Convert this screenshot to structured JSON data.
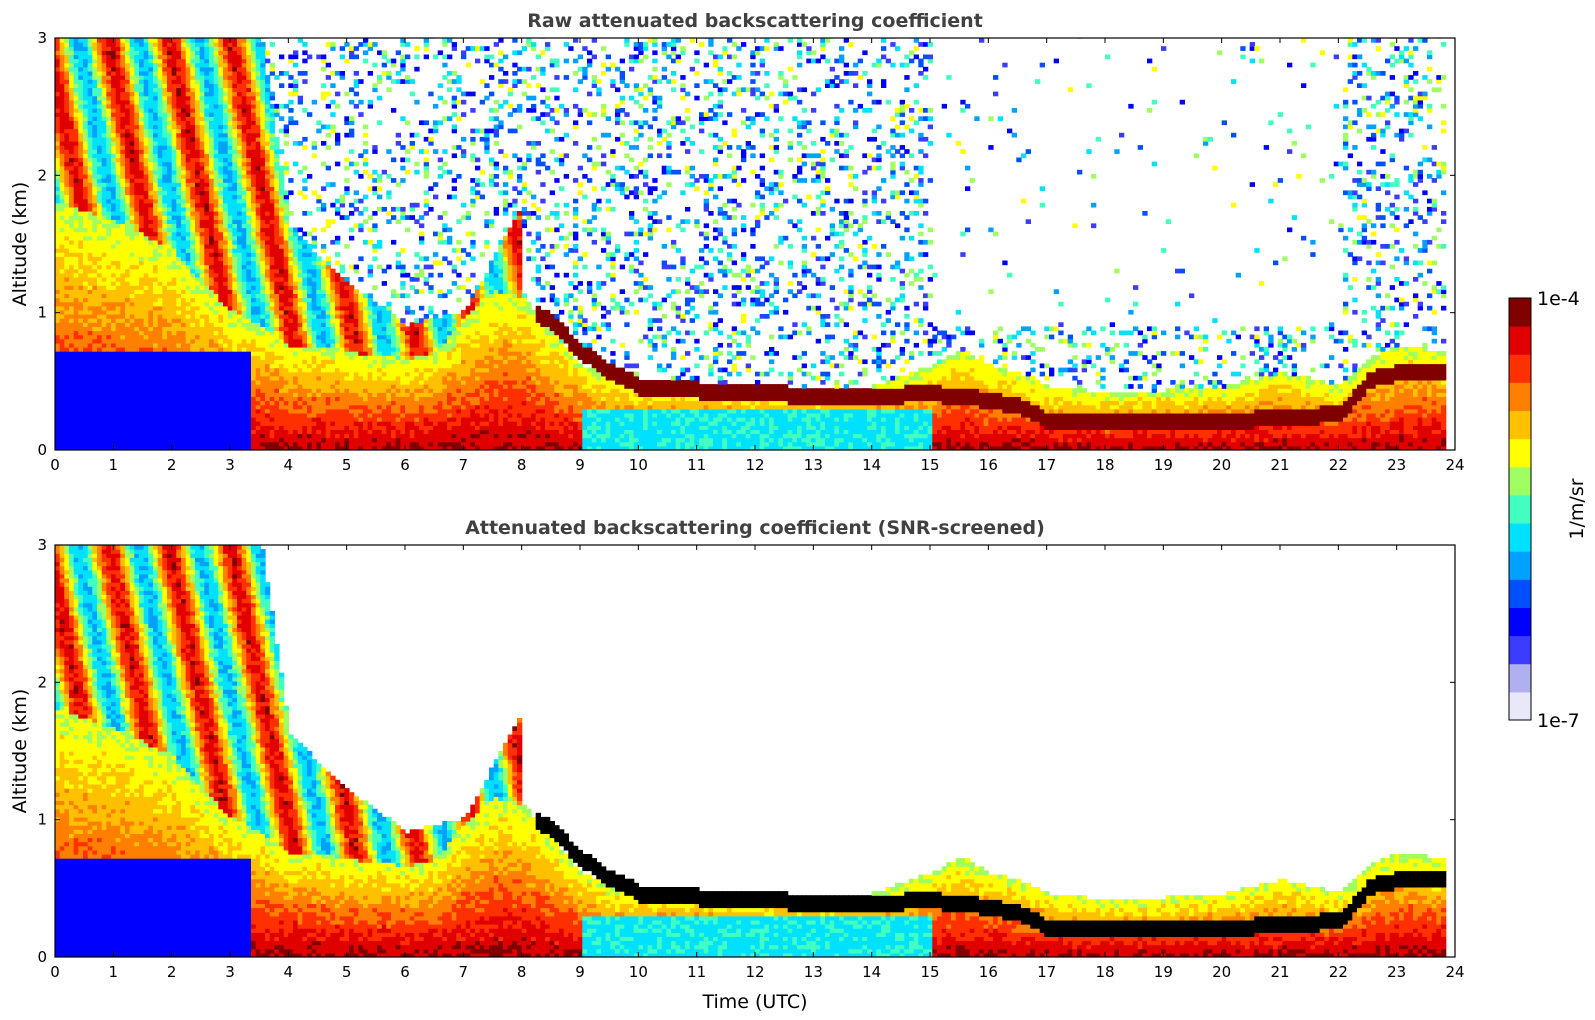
{
  "chart_data": [
    {
      "type": "heatmap",
      "title": "Raw attenuated backscattering coefficient",
      "xlabel": "",
      "ylabel": "Altitude (km)",
      "xlim": [
        0,
        24
      ],
      "ylim": [
        0,
        3
      ],
      "xticks": [
        "0",
        "1",
        "2",
        "3",
        "4",
        "5",
        "6",
        "7",
        "8",
        "9",
        "10",
        "11",
        "12",
        "13",
        "14",
        "15",
        "16",
        "17",
        "18",
        "19",
        "20",
        "21",
        "22",
        "23",
        "24"
      ],
      "yticks": [
        "0",
        "1",
        "2",
        "3"
      ],
      "features": {
        "boundary_layer_top_km": [
          [
            0,
            1.8
          ],
          [
            1,
            1.65
          ],
          [
            2,
            1.45
          ],
          [
            2.5,
            1.2
          ],
          [
            3,
            1.0
          ],
          [
            3.5,
            0.9
          ],
          [
            4,
            0.75
          ],
          [
            4.5,
            0.75
          ],
          [
            5,
            0.7
          ],
          [
            6,
            0.65
          ],
          [
            6.5,
            0.7
          ],
          [
            7,
            0.95
          ],
          [
            7.5,
            1.15
          ],
          [
            8,
            1.1
          ],
          [
            8.5,
            0.85
          ],
          [
            9,
            0.6
          ],
          [
            9.5,
            0.5
          ],
          [
            10,
            0.45
          ],
          [
            11,
            0.45
          ],
          [
            12,
            0.42
          ],
          [
            13,
            0.42
          ],
          [
            14,
            0.45
          ],
          [
            15,
            0.6
          ],
          [
            15.5,
            0.72
          ],
          [
            16,
            0.6
          ],
          [
            16.5,
            0.55
          ],
          [
            17,
            0.45
          ],
          [
            18,
            0.4
          ],
          [
            19,
            0.42
          ],
          [
            20,
            0.45
          ],
          [
            21,
            0.55
          ],
          [
            22,
            0.45
          ],
          [
            22.5,
            0.65
          ],
          [
            23,
            0.75
          ],
          [
            23.8,
            0.7
          ]
        ],
        "residual_layer_top_km": [
          [
            0.0,
            3
          ],
          [
            3.5,
            3
          ],
          [
            4,
            1.6
          ],
          [
            5,
            1.2
          ],
          [
            6,
            0.9
          ],
          [
            7,
            1.0
          ],
          [
            8,
            1.8
          ]
        ],
        "cloud_layer_km": [
          [
            8.2,
            1.0
          ],
          [
            8.5,
            0.9
          ],
          [
            9,
            0.7
          ],
          [
            9.5,
            0.55
          ],
          [
            10,
            0.45
          ],
          [
            11,
            0.42
          ],
          [
            12,
            0.4
          ],
          [
            13,
            0.38
          ],
          [
            14,
            0.38
          ],
          [
            15,
            0.4
          ],
          [
            16,
            0.35
          ],
          [
            16.5,
            0.3
          ],
          [
            17,
            0.2
          ],
          [
            18,
            0.18
          ],
          [
            19,
            0.2
          ],
          [
            20,
            0.2
          ],
          [
            21,
            0.22
          ],
          [
            22,
            0.25
          ],
          [
            22.5,
            0.5
          ],
          [
            23,
            0.55
          ],
          [
            23.8,
            0.55
          ]
        ]
      }
    },
    {
      "type": "heatmap",
      "title": "Attenuated backscattering coefficient (SNR-screened)",
      "xlabel": "Time (UTC)",
      "ylabel": "Altitude (km)",
      "xlim": [
        0,
        24
      ],
      "ylim": [
        0,
        3
      ],
      "xticks": [
        "0",
        "1",
        "2",
        "3",
        "4",
        "5",
        "6",
        "7",
        "8",
        "9",
        "10",
        "11",
        "12",
        "13",
        "14",
        "15",
        "16",
        "17",
        "18",
        "19",
        "20",
        "21",
        "22",
        "23",
        "24"
      ],
      "yticks": [
        "0",
        "1",
        "2",
        "3"
      ]
    }
  ],
  "colorbar": {
    "label": "1/m/sr",
    "max_label": "1e-4",
    "min_label": "1e-7",
    "colors": [
      "#e8e8f8",
      "#b0b0f0",
      "#3c3cff",
      "#0000ff",
      "#0050ff",
      "#00a0ff",
      "#00e0ff",
      "#40ffc0",
      "#a0ff60",
      "#ffff00",
      "#ffc000",
      "#ff8000",
      "#ff3000",
      "#e00000",
      "#800000"
    ]
  }
}
